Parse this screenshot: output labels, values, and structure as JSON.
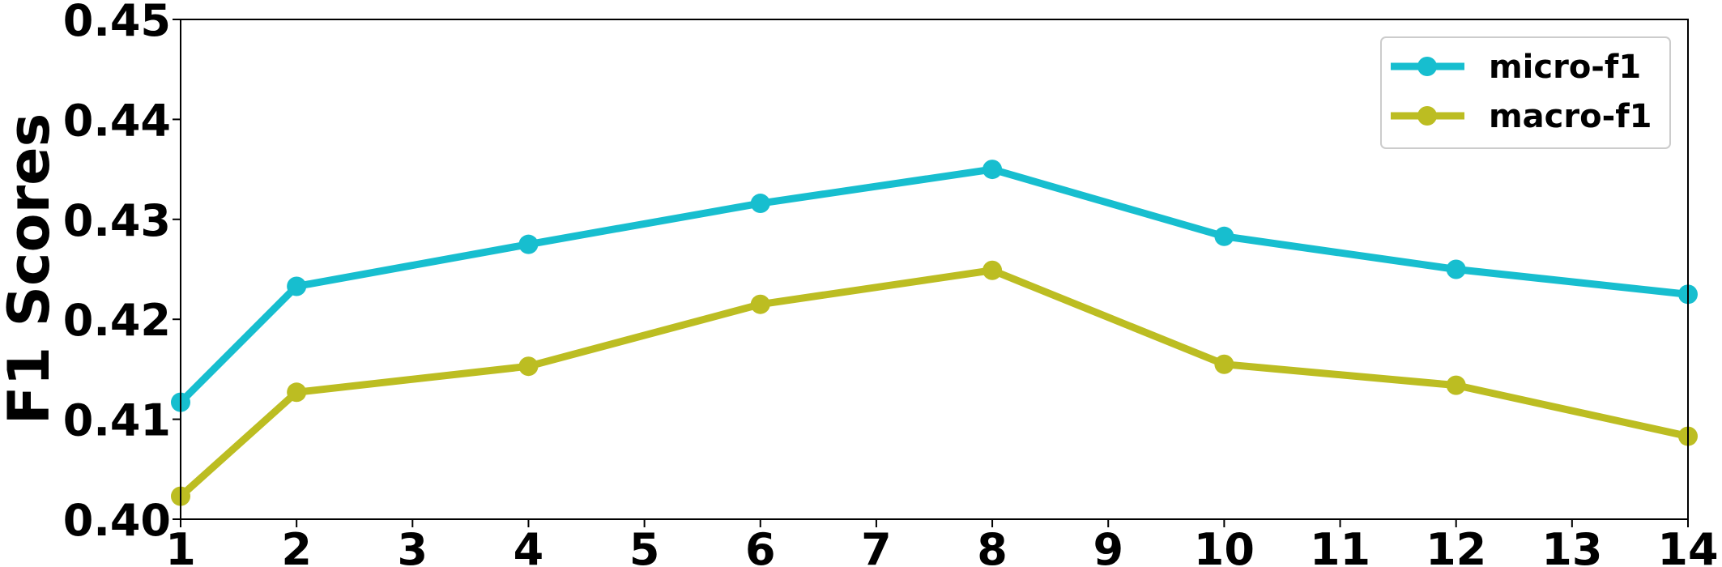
{
  "chart_data": {
    "type": "line",
    "title": "",
    "xlabel": "",
    "ylabel": "F1 Scores",
    "x_tick_labels": [
      "1",
      "2",
      "3",
      "4",
      "5",
      "6",
      "7",
      "8",
      "9",
      "10",
      "11",
      "12",
      "13",
      "14"
    ],
    "y_tick_labels": [
      "0.40",
      "0.41",
      "0.42",
      "0.43",
      "0.44",
      "0.45"
    ],
    "y_ticks": [
      0.4,
      0.41,
      0.42,
      0.43,
      0.44,
      0.45
    ],
    "ylim": [
      0.4,
      0.45
    ],
    "grid": false,
    "legend_position": "top-right",
    "series": [
      {
        "name": "micro-f1",
        "color": "#17becf",
        "points": [
          {
            "x": "1",
            "y": 0.4117
          },
          {
            "x": "2",
            "y": 0.4233
          },
          {
            "x": "4",
            "y": 0.4275
          },
          {
            "x": "6",
            "y": 0.4316
          },
          {
            "x": "8",
            "y": 0.435
          },
          {
            "x": "10",
            "y": 0.4283
          },
          {
            "x": "12",
            "y": 0.425
          },
          {
            "x": "14",
            "y": 0.4225
          }
        ]
      },
      {
        "name": "macro-f1",
        "color": "#bcbd22",
        "points": [
          {
            "x": "1",
            "y": 0.4023
          },
          {
            "x": "2",
            "y": 0.4127
          },
          {
            "x": "4",
            "y": 0.4153
          },
          {
            "x": "6",
            "y": 0.4215
          },
          {
            "x": "8",
            "y": 0.4249
          },
          {
            "x": "10",
            "y": 0.4155
          },
          {
            "x": "12",
            "y": 0.4134
          },
          {
            "x": "14",
            "y": 0.4083
          }
        ]
      }
    ]
  }
}
